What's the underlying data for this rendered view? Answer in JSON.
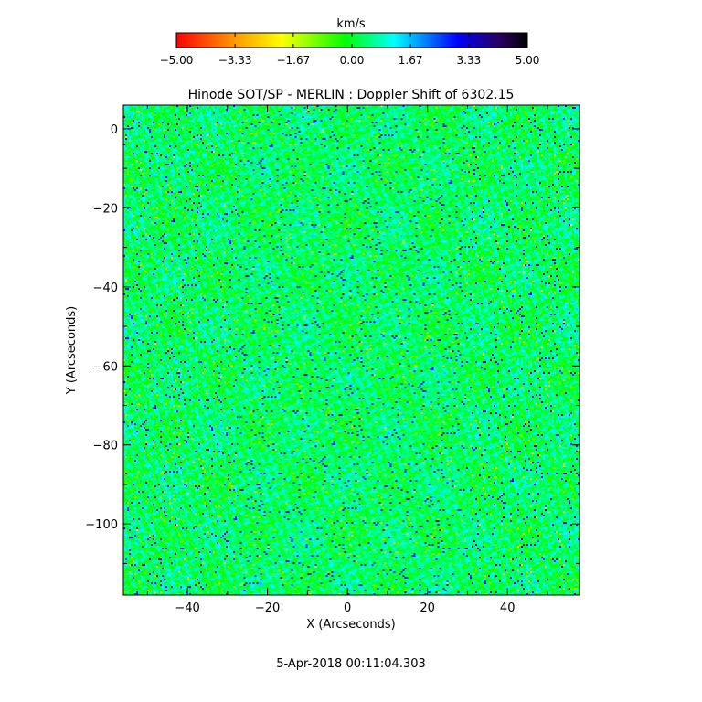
{
  "chart_data": {
    "type": "heatmap",
    "title": "Hinode SOT/SP - MERLIN : Doppler Shift of 6302.15",
    "xlabel": "X (Arcseconds)",
    "ylabel": "Y (Arcseconds)",
    "xlim": [
      -56,
      58
    ],
    "ylim": [
      -118,
      6
    ],
    "x_ticks": [
      -40,
      -20,
      0,
      20,
      40
    ],
    "y_ticks": [
      0,
      -20,
      -40,
      -60,
      -80,
      -100
    ],
    "x_tick_labels": [
      "−40",
      "−20",
      "0",
      "20",
      "40"
    ],
    "y_tick_labels": [
      "0",
      "−20",
      "−40",
      "−60",
      "−80",
      "−100"
    ],
    "colorbar": {
      "label": "km/s",
      "range": [
        -5.0,
        5.0
      ],
      "ticks": [
        -5.0,
        -3.33,
        -1.67,
        0.0,
        1.67,
        3.33,
        5.0
      ],
      "tick_labels": [
        "−5.00",
        "−3.33",
        "−1.67",
        "0.00",
        "1.67",
        "3.33",
        "5.00"
      ],
      "colormap": [
        "#ff0000",
        "#ff8c00",
        "#ffff00",
        "#00ff00",
        "#00ffff",
        "#0000ff",
        "#000000"
      ]
    },
    "value_distribution": {
      "typical_range_kms": [
        -1.5,
        2.5
      ],
      "dominant_color": "#00ff80",
      "secondary_colors": [
        "#00ffff",
        "#0000ff",
        "#ffff00"
      ]
    }
  },
  "timestamp": "5-Apr-2018 00:11:04.303"
}
